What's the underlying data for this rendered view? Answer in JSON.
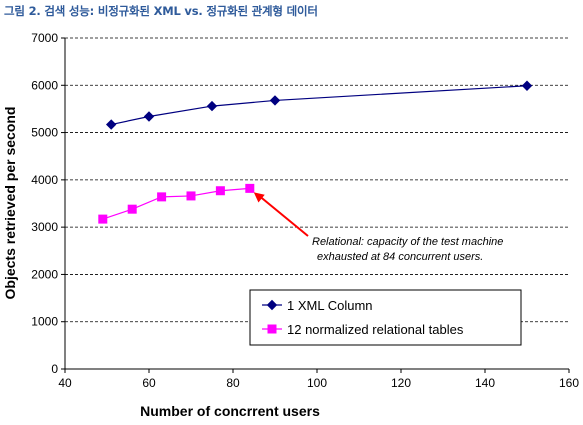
{
  "figure_title": "그림 2. 검색 성능: 비정규화된 XML vs. 정규화된 관계형 데이터",
  "colors": {
    "xml_series": "#000080",
    "relational_series": "#ff00ff",
    "arrow": "#ff0000",
    "gridline": "#000000"
  },
  "chart_data": {
    "type": "line",
    "title": "",
    "xlabel": "Number of concrrent users",
    "ylabel": "Objects retrieved per second",
    "xlim": [
      40,
      160
    ],
    "ylim": [
      0,
      7000
    ],
    "x_ticks": [
      40,
      60,
      80,
      100,
      120,
      140,
      160
    ],
    "y_ticks": [
      0,
      1000,
      2000,
      3000,
      4000,
      5000,
      6000,
      7000
    ],
    "grid": "horizontal dashed",
    "legend_position": "bottom-right",
    "series": [
      {
        "name": "1 XML Column",
        "marker": "diamond",
        "x": [
          51,
          60,
          75,
          90,
          150
        ],
        "y": [
          5170,
          5340,
          5560,
          5680,
          5990
        ]
      },
      {
        "name": "12 normalized relational tables",
        "marker": "square",
        "x": [
          49,
          56,
          63,
          70,
          77,
          84
        ],
        "y": [
          3170,
          3380,
          3640,
          3660,
          3770,
          3820
        ]
      }
    ],
    "annotation": {
      "lines": [
        "Relational: capacity of the test machine",
        "exhausted at 84 concurrent users."
      ],
      "points_to": {
        "x": 84,
        "y": 3820
      }
    }
  }
}
